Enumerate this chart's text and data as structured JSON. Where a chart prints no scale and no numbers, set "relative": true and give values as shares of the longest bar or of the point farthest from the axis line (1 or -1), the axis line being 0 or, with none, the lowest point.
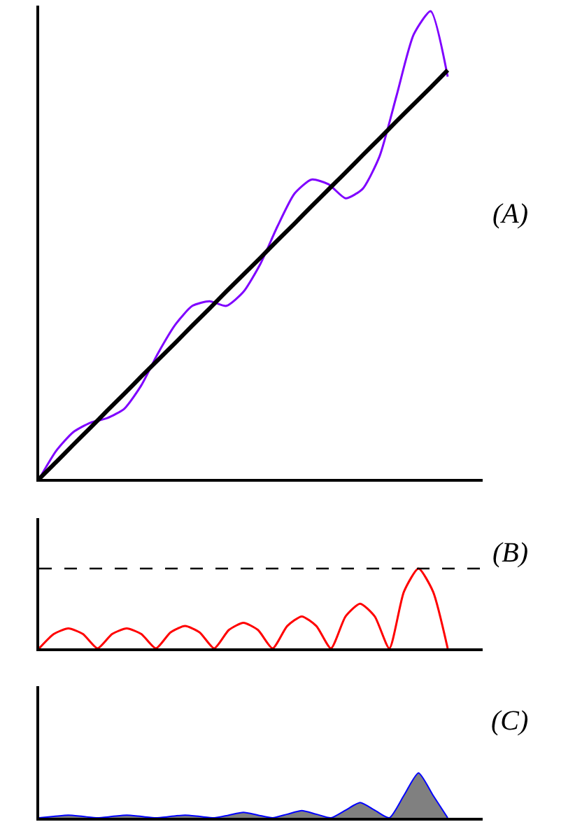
{
  "chart_data": [
    {
      "type": "line",
      "relative": true,
      "marker": "none",
      "annotations": [
        "(A)"
      ],
      "categories": [
        null,
        null,
        null,
        null,
        null,
        null,
        null,
        null,
        null,
        null,
        null,
        null,
        null,
        null,
        null,
        null,
        null,
        null,
        null,
        null,
        null,
        null,
        null,
        null,
        null
      ],
      "series": [
        {
          "color": "#7f00ff",
          "values": [
            0,
            0.06,
            0.1,
            0.12,
            0.13,
            0.15,
            0.2,
            0.27,
            0.33,
            0.37,
            0.38,
            0.37,
            0.4,
            0.46,
            0.54,
            0.61,
            0.64,
            0.63,
            0.6,
            0.62,
            0.69,
            0.82,
            0.95,
            1,
            0.86
          ]
        },
        {
          "color": "#000000",
          "values": [
            0,
            0.036,
            0.073,
            0.109,
            0.146,
            0.182,
            0.219,
            0.255,
            0.291,
            0.328,
            0.364,
            0.401,
            0.437,
            0.473,
            0.51,
            0.546,
            0.583,
            0.619,
            0.655,
            0.692,
            0.728,
            0.765,
            0.801,
            0.837,
            0.874
          ]
        }
      ]
    },
    {
      "type": "line",
      "relative": true,
      "marker": "none",
      "annotations": [
        "(B)"
      ],
      "categories": [
        null,
        null,
        null,
        null,
        null,
        null,
        null,
        null,
        null,
        null,
        null,
        null,
        null,
        null,
        null,
        null,
        null,
        null,
        null,
        null,
        null,
        null,
        null,
        null,
        null,
        null,
        null,
        null,
        null
      ],
      "ref_lines": [
        {
          "axis": "y",
          "value": 1,
          "color": "#000000",
          "line_style": "dashed"
        }
      ],
      "series": [
        {
          "color": "#ff0000",
          "values": [
            0,
            0.18,
            0.25,
            0.18,
            0,
            0.18,
            0.25,
            0.18,
            0,
            0.2,
            0.28,
            0.2,
            0,
            0.23,
            0.32,
            0.23,
            0,
            0.28,
            0.4,
            0.28,
            0,
            0.4,
            0.56,
            0.4,
            0,
            0.71,
            1,
            0.71,
            0
          ]
        }
      ]
    },
    {
      "type": "area",
      "relative": true,
      "marker": "none",
      "annotations": [
        "(C)"
      ],
      "categories": [
        null,
        null,
        null,
        null,
        null,
        null,
        null,
        null,
        null,
        null,
        null,
        null,
        null,
        null,
        null,
        null,
        null,
        null,
        null,
        null,
        null,
        null,
        null,
        null,
        null,
        null,
        null,
        null,
        null
      ],
      "series": [
        {
          "color": "#808080",
          "values": [
            0,
            0.03,
            0.06,
            0.03,
            0,
            0.03,
            0.06,
            0.03,
            0,
            0.03,
            0.06,
            0.03,
            0,
            0.06,
            0.12,
            0.06,
            0,
            0.08,
            0.16,
            0.08,
            0,
            0.17,
            0.34,
            0.17,
            0,
            0.5,
            1,
            0.5,
            0
          ]
        }
      ]
    }
  ]
}
